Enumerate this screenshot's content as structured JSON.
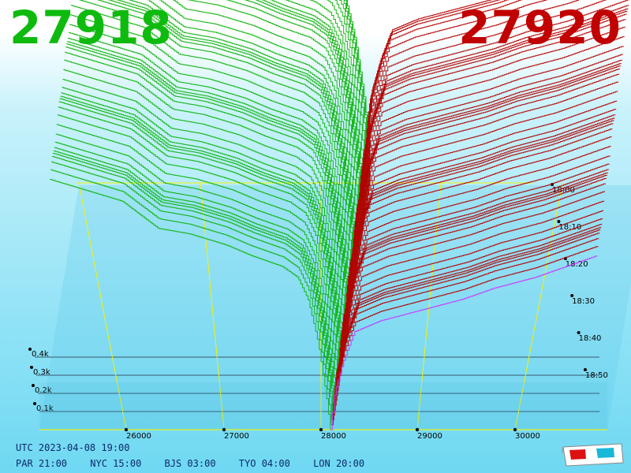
{
  "header": {
    "bid_price": "27918",
    "ask_price": "27920"
  },
  "footer": {
    "utc": "UTC 2023-04-08 19:00",
    "zones": [
      "PAR 21:00",
      "NYC 15:00",
      "BJS 03:00",
      "TYO 04:00",
      "LON 20:00"
    ]
  },
  "chart_data": {
    "type": "area",
    "subtype": "3d-order-book-depth",
    "x_ticks": [
      "26000",
      "27000",
      "28000",
      "29000",
      "30000"
    ],
    "y_ticks": [
      "0.1k",
      "0.2k",
      "0.3k",
      "0.4k"
    ],
    "time_ticks": [
      "18:00",
      "18:10",
      "18:20",
      "18:30",
      "18:40",
      "18:50"
    ],
    "bid_price": 27918,
    "ask_price": 27920,
    "xlim": [
      25100,
      30600
    ],
    "ylim": [
      0,
      0.5
    ],
    "series": [
      {
        "color": "#0eb30e",
        "profile": [
          [
            25200,
            0.46
          ],
          [
            25900,
            0.42
          ],
          [
            26250,
            0.37
          ],
          [
            26550,
            0.36
          ],
          [
            26900,
            0.34
          ],
          [
            27150,
            0.32
          ],
          [
            27450,
            0.3
          ],
          [
            27600,
            0.28
          ],
          [
            27700,
            0.24
          ],
          [
            27800,
            0.16
          ],
          [
            27880,
            0.06
          ],
          [
            27918,
            0.0
          ]
        ]
      },
      {
        "color": "#b40000",
        "profile": [
          [
            27920,
            0.0
          ],
          [
            27960,
            0.07
          ],
          [
            28050,
            0.13
          ],
          [
            28150,
            0.18
          ],
          [
            28400,
            0.2
          ],
          [
            28800,
            0.22
          ],
          [
            29200,
            0.24
          ],
          [
            29500,
            0.26
          ],
          [
            29900,
            0.28
          ],
          [
            30200,
            0.3
          ],
          [
            30500,
            0.32
          ]
        ]
      }
    ],
    "colors": {
      "bid": "#0eb30e",
      "ask": "#b40000",
      "grid": "#f2f20a",
      "latest_ask": "#cc33ff"
    }
  }
}
